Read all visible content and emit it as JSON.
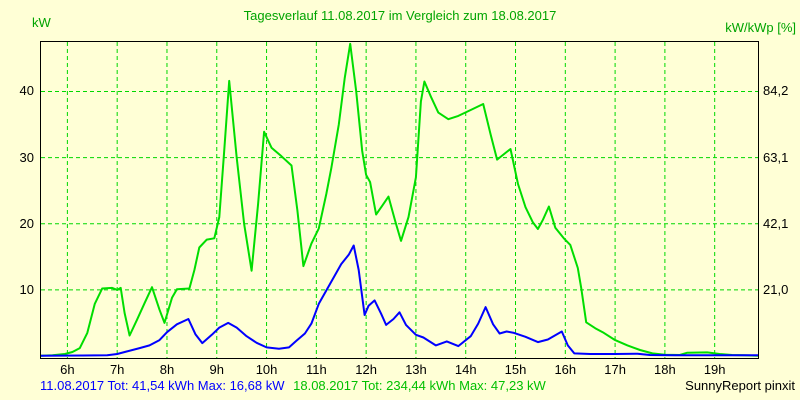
{
  "header": {
    "title": "Tagesverlauf 11.08.2017 im Vergleich zum 18.08.2017",
    "left_unit": "kW",
    "right_unit": "kW/kWp [%]"
  },
  "footer": {
    "legend_1108": "11.08.2017 Tot: 41,54 kWh Max: 16,68 kW",
    "legend_1808": "18.08.2017 Tot: 234,44 kWh Max: 47,23 kW",
    "watermark": "SunnyReport pinxit"
  },
  "colors": {
    "background": "#ffffd6",
    "frame": "#000000",
    "grid": "#00d800",
    "title_text": "#00a400",
    "axis_text": "#000000",
    "series_1108": "#0000ff",
    "series_1808": "#00dd00",
    "legend_1108_text": "#0000ff",
    "legend_1808_text": "#00c000"
  },
  "chart_data": {
    "type": "line",
    "title": "Tagesverlauf 11.08.2017 im Vergleich zum 18.08.2017",
    "xlabel": "",
    "ylabel_left": "kW",
    "ylabel_right": "kW/kWp [%]",
    "grid": true,
    "x_range_hours": [
      5.46,
      19.88
    ],
    "y_range_kw": [
      0,
      47.4
    ],
    "x_ticks": [
      {
        "hour": 6,
        "label": "6h"
      },
      {
        "hour": 7,
        "label": "7h"
      },
      {
        "hour": 8,
        "label": "8h"
      },
      {
        "hour": 9,
        "label": "9h"
      },
      {
        "hour": 10,
        "label": "10h"
      },
      {
        "hour": 11,
        "label": "11h"
      },
      {
        "hour": 12,
        "label": "12h"
      },
      {
        "hour": 13,
        "label": "13h"
      },
      {
        "hour": 14,
        "label": "14h"
      },
      {
        "hour": 15,
        "label": "15h"
      },
      {
        "hour": 16,
        "label": "16h"
      },
      {
        "hour": 17,
        "label": "17h"
      },
      {
        "hour": 18,
        "label": "18h"
      },
      {
        "hour": 19,
        "label": "19h"
      }
    ],
    "y_ticks_left": [
      {
        "kw": 40,
        "label": "40"
      },
      {
        "kw": 30,
        "label": "30"
      },
      {
        "kw": 20,
        "label": "20"
      },
      {
        "kw": 10,
        "label": "10"
      }
    ],
    "y_ticks_right": [
      {
        "kw": 40,
        "label": "84,2"
      },
      {
        "kw": 30,
        "label": "63,1"
      },
      {
        "kw": 20,
        "label": "42,1"
      },
      {
        "kw": 10,
        "label": "21,0"
      }
    ],
    "series": [
      {
        "name": "18.08.2017",
        "color": "#00dd00",
        "total": "234,44 kWh",
        "max": "47,23 kW",
        "points": [
          [
            5.46,
            0.05
          ],
          [
            5.7,
            0.1
          ],
          [
            5.95,
            0.3
          ],
          [
            6.1,
            0.6
          ],
          [
            6.25,
            1.2
          ],
          [
            6.4,
            3.5
          ],
          [
            6.55,
            7.9
          ],
          [
            6.7,
            10.2
          ],
          [
            6.9,
            10.3
          ],
          [
            7.0,
            10.0
          ],
          [
            7.07,
            10.3
          ],
          [
            7.15,
            6.5
          ],
          [
            7.25,
            3.1
          ],
          [
            7.4,
            5.5
          ],
          [
            7.55,
            8.0
          ],
          [
            7.7,
            10.4
          ],
          [
            7.85,
            7.0
          ],
          [
            7.95,
            5.0
          ],
          [
            8.1,
            8.8
          ],
          [
            8.2,
            10.1
          ],
          [
            8.45,
            10.2
          ],
          [
            8.55,
            13.0
          ],
          [
            8.65,
            16.4
          ],
          [
            8.8,
            17.6
          ],
          [
            8.95,
            17.8
          ],
          [
            9.05,
            21.0
          ],
          [
            9.15,
            31.0
          ],
          [
            9.25,
            41.6
          ],
          [
            9.4,
            30.0
          ],
          [
            9.55,
            20.0
          ],
          [
            9.7,
            12.9
          ],
          [
            9.83,
            23.0
          ],
          [
            9.95,
            33.9
          ],
          [
            10.1,
            31.5
          ],
          [
            10.3,
            30.2
          ],
          [
            10.5,
            28.8
          ],
          [
            10.62,
            22.0
          ],
          [
            10.74,
            13.6
          ],
          [
            10.9,
            17.0
          ],
          [
            11.05,
            19.3
          ],
          [
            11.2,
            24.5
          ],
          [
            11.3,
            28.4
          ],
          [
            11.45,
            35.0
          ],
          [
            11.57,
            42.0
          ],
          [
            11.68,
            47.2
          ],
          [
            11.8,
            40.0
          ],
          [
            11.92,
            31.0
          ],
          [
            12.0,
            27.4
          ],
          [
            12.08,
            26.3
          ],
          [
            12.2,
            21.4
          ],
          [
            12.33,
            22.8
          ],
          [
            12.45,
            24.1
          ],
          [
            12.58,
            20.5
          ],
          [
            12.7,
            17.4
          ],
          [
            12.85,
            21.0
          ],
          [
            13.0,
            27.0
          ],
          [
            13.1,
            38.5
          ],
          [
            13.17,
            41.5
          ],
          [
            13.3,
            39.2
          ],
          [
            13.45,
            36.8
          ],
          [
            13.65,
            35.8
          ],
          [
            13.85,
            36.3
          ],
          [
            14.1,
            37.2
          ],
          [
            14.35,
            38.1
          ],
          [
            14.5,
            33.5
          ],
          [
            14.63,
            29.7
          ],
          [
            14.78,
            30.6
          ],
          [
            14.9,
            31.3
          ],
          [
            15.05,
            26.0
          ],
          [
            15.2,
            22.5
          ],
          [
            15.35,
            20.2
          ],
          [
            15.45,
            19.2
          ],
          [
            15.55,
            20.6
          ],
          [
            15.67,
            22.6
          ],
          [
            15.8,
            19.4
          ],
          [
            15.97,
            17.8
          ],
          [
            16.1,
            16.8
          ],
          [
            16.25,
            13.3
          ],
          [
            16.32,
            10.3
          ],
          [
            16.42,
            5.1
          ],
          [
            16.6,
            4.2
          ],
          [
            16.75,
            3.6
          ],
          [
            17.0,
            2.4
          ],
          [
            17.25,
            1.6
          ],
          [
            17.5,
            0.9
          ],
          [
            17.75,
            0.4
          ],
          [
            18.0,
            0.2
          ],
          [
            18.3,
            0.15
          ],
          [
            18.45,
            0.5
          ],
          [
            18.85,
            0.55
          ],
          [
            19.1,
            0.3
          ],
          [
            19.35,
            0.15
          ],
          [
            19.6,
            0.1
          ],
          [
            19.88,
            0.05
          ]
        ]
      },
      {
        "name": "11.08.2017",
        "color": "#0000ff",
        "total": "41,54 kWh",
        "max": "16,68 kW",
        "points": [
          [
            5.46,
            0.05
          ],
          [
            6.3,
            0.08
          ],
          [
            6.8,
            0.12
          ],
          [
            7.0,
            0.3
          ],
          [
            7.2,
            0.7
          ],
          [
            7.45,
            1.2
          ],
          [
            7.65,
            1.6
          ],
          [
            7.85,
            2.4
          ],
          [
            8.0,
            3.6
          ],
          [
            8.2,
            4.8
          ],
          [
            8.43,
            5.6
          ],
          [
            8.57,
            3.3
          ],
          [
            8.71,
            1.95
          ],
          [
            8.9,
            3.2
          ],
          [
            9.05,
            4.3
          ],
          [
            9.23,
            5.0
          ],
          [
            9.4,
            4.3
          ],
          [
            9.6,
            3.0
          ],
          [
            9.8,
            2.0
          ],
          [
            10.0,
            1.3
          ],
          [
            10.25,
            1.1
          ],
          [
            10.45,
            1.3
          ],
          [
            10.6,
            2.3
          ],
          [
            10.77,
            3.4
          ],
          [
            10.9,
            4.9
          ],
          [
            11.05,
            7.9
          ],
          [
            11.2,
            9.9
          ],
          [
            11.35,
            11.9
          ],
          [
            11.5,
            13.9
          ],
          [
            11.65,
            15.3
          ],
          [
            11.75,
            16.7
          ],
          [
            11.85,
            13.0
          ],
          [
            11.97,
            6.2
          ],
          [
            12.05,
            7.6
          ],
          [
            12.17,
            8.4
          ],
          [
            12.3,
            6.4
          ],
          [
            12.4,
            4.7
          ],
          [
            12.55,
            5.6
          ],
          [
            12.67,
            6.6
          ],
          [
            12.8,
            4.7
          ],
          [
            13.0,
            3.2
          ],
          [
            13.15,
            2.8
          ],
          [
            13.4,
            1.6
          ],
          [
            13.62,
            2.2
          ],
          [
            13.85,
            1.5
          ],
          [
            14.1,
            3.0
          ],
          [
            14.25,
            4.9
          ],
          [
            14.4,
            7.4
          ],
          [
            14.55,
            4.8
          ],
          [
            14.68,
            3.4
          ],
          [
            14.82,
            3.7
          ],
          [
            14.97,
            3.5
          ],
          [
            15.2,
            2.9
          ],
          [
            15.45,
            2.1
          ],
          [
            15.65,
            2.5
          ],
          [
            15.93,
            3.7
          ],
          [
            16.05,
            1.6
          ],
          [
            16.18,
            0.4
          ],
          [
            16.5,
            0.3
          ],
          [
            17.0,
            0.3
          ],
          [
            17.45,
            0.35
          ],
          [
            17.7,
            0.15
          ],
          [
            18.2,
            0.1
          ],
          [
            18.7,
            0.12
          ],
          [
            19.2,
            0.1
          ],
          [
            19.88,
            0.1
          ]
        ]
      }
    ]
  }
}
